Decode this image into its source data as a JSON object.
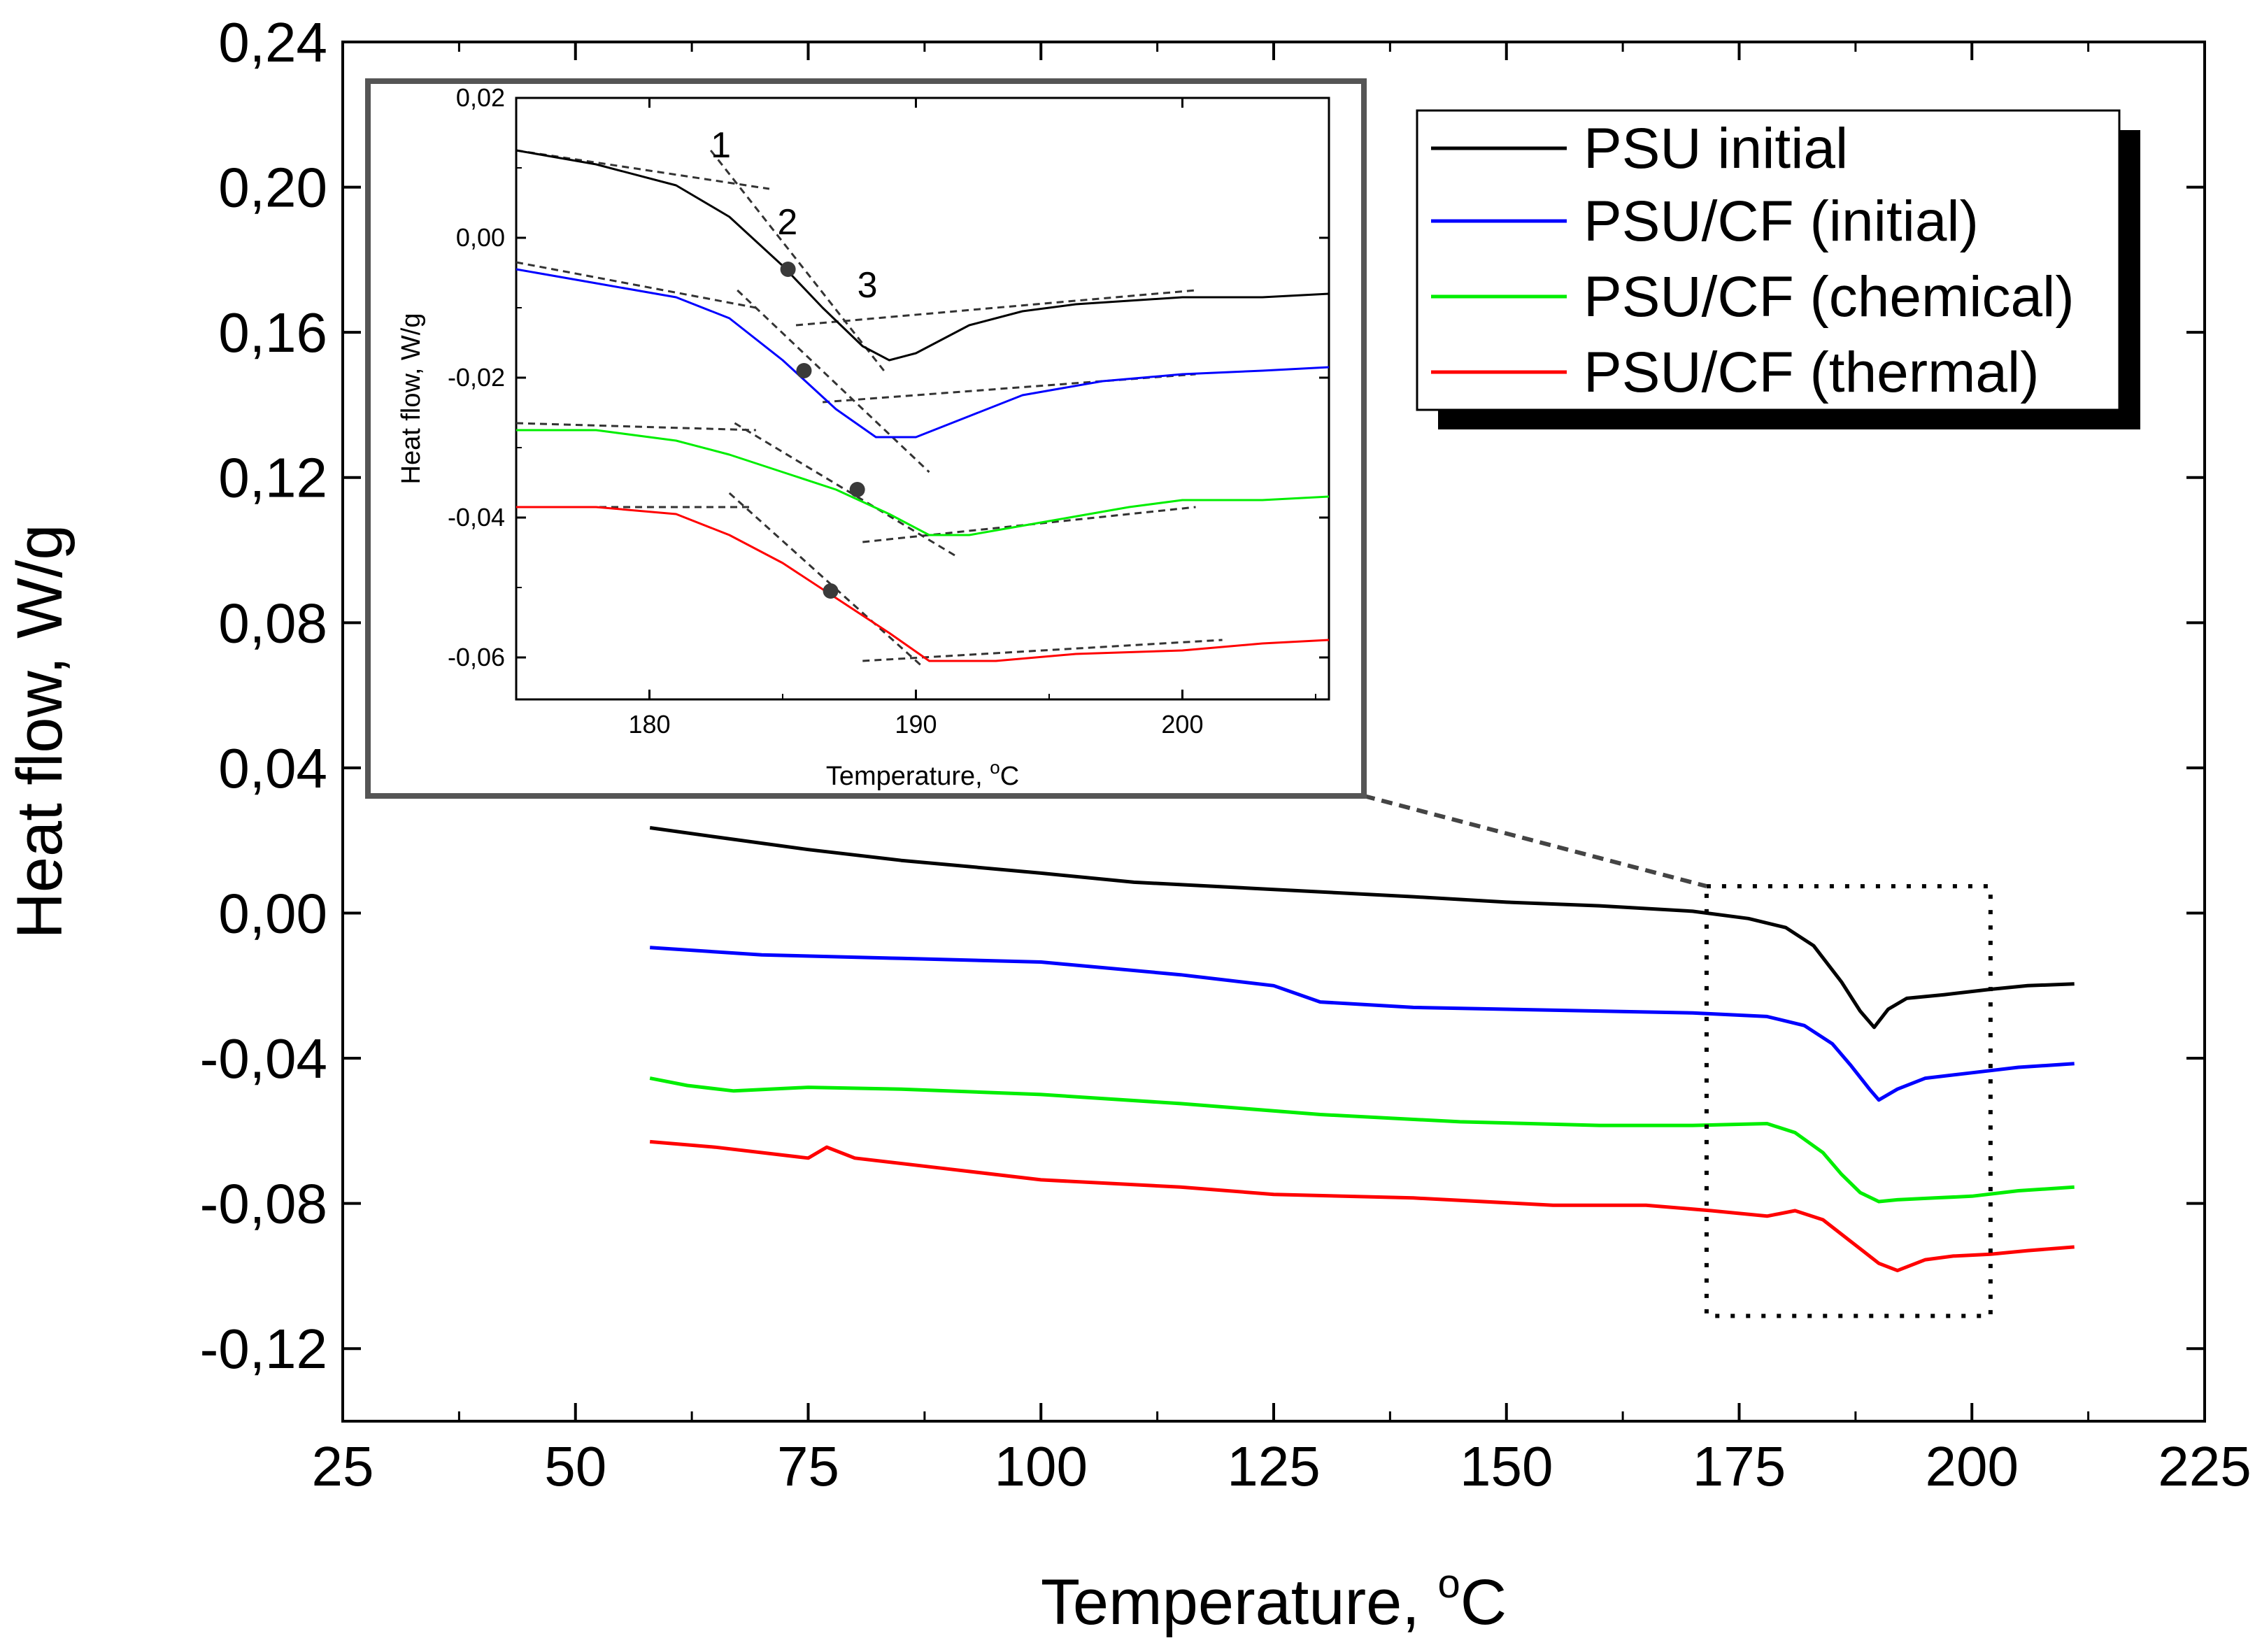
{
  "chart_data": [
    {
      "id": "main",
      "type": "line",
      "title": "",
      "xlabel": "Temperature, ",
      "xlabel_sup": "o",
      "xlabel_unit": "C",
      "ylabel": "Heat flow, W/g",
      "xlim": [
        25,
        225
      ],
      "ylim": [
        -0.14,
        0.24
      ],
      "xticks": [
        25,
        50,
        75,
        100,
        125,
        150,
        175,
        200,
        225
      ],
      "xtick_labels": [
        "25",
        "50",
        "75",
        "100",
        "125",
        "150",
        "175",
        "200",
        "225"
      ],
      "yticks": [
        -0.12,
        -0.08,
        -0.04,
        0.0,
        0.04,
        0.08,
        0.12,
        0.16,
        0.2,
        0.24
      ],
      "ytick_labels": [
        "-0,12",
        "-0,08",
        "-0,04",
        "0,00",
        "0,04",
        "0,08",
        "0,12",
        "0,16",
        "0,20",
        "0,24"
      ],
      "legend_position": "top-right",
      "zoom_box": {
        "x": [
          171.5,
          202
        ],
        "y": [
          -0.111,
          0.0074
        ]
      },
      "series": [
        {
          "name": "PSU initial",
          "color": "#000000",
          "x": [
            58,
            65,
            75,
            85,
            100,
            110,
            125,
            140,
            150,
            160,
            170,
            176,
            180,
            183,
            186,
            188,
            189.5,
            191,
            193,
            197,
            202,
            206,
            211
          ],
          "y": [
            0.0235,
            0.021,
            0.0175,
            0.0145,
            0.011,
            0.0085,
            0.0065,
            0.0045,
            0.003,
            0.002,
            0.0005,
            -0.0015,
            -0.004,
            -0.009,
            -0.019,
            -0.027,
            -0.0315,
            -0.0265,
            -0.0235,
            -0.0225,
            -0.021,
            -0.02,
            -0.0195
          ]
        },
        {
          "name": "PSU/CF (initial)",
          "color": "#0000ff",
          "x": [
            58,
            70,
            85,
            100,
            115,
            125,
            130,
            140,
            150,
            160,
            170,
            178,
            182,
            185,
            187,
            189,
            190,
            192,
            195,
            200,
            205,
            211
          ],
          "y": [
            -0.0095,
            -0.0115,
            -0.0125,
            -0.0135,
            -0.017,
            -0.02,
            -0.0245,
            -0.026,
            -0.0265,
            -0.027,
            -0.0275,
            -0.0285,
            -0.031,
            -0.036,
            -0.042,
            -0.0485,
            -0.0515,
            -0.0485,
            -0.0455,
            -0.044,
            -0.0425,
            -0.0415
          ]
        },
        {
          "name": "PSU/CF (chemical)",
          "color": "#00ee00",
          "x": [
            58,
            62,
            67,
            75,
            85,
            100,
            115,
            130,
            145,
            160,
            170,
            178,
            181,
            184,
            186,
            188,
            190,
            192,
            196,
            200,
            205,
            211
          ],
          "y": [
            -0.0455,
            -0.0475,
            -0.049,
            -0.048,
            -0.0485,
            -0.05,
            -0.0525,
            -0.0555,
            -0.0575,
            -0.0585,
            -0.0585,
            -0.058,
            -0.0605,
            -0.066,
            -0.072,
            -0.077,
            -0.0795,
            -0.079,
            -0.0785,
            -0.078,
            -0.0765,
            -0.0755
          ]
        },
        {
          "name": "PSU/CF (thermal)",
          "color": "#ff0000",
          "x": [
            58,
            65,
            75,
            77,
            80,
            90,
            100,
            115,
            125,
            140,
            155,
            165,
            172,
            178,
            181,
            184,
            187,
            190,
            192,
            195,
            198,
            202,
            206,
            211
          ],
          "y": [
            -0.063,
            -0.0645,
            -0.0675,
            -0.0645,
            -0.0675,
            -0.0705,
            -0.0735,
            -0.0755,
            -0.0775,
            -0.0785,
            -0.0805,
            -0.0805,
            -0.082,
            -0.0835,
            -0.082,
            -0.0845,
            -0.0905,
            -0.0965,
            -0.0985,
            -0.0955,
            -0.0945,
            -0.094,
            -0.093,
            -0.092
          ]
        }
      ]
    },
    {
      "id": "inset",
      "type": "line",
      "title": "",
      "xlabel": "Temperature, ",
      "xlabel_sup": "o",
      "xlabel_unit": "C",
      "ylabel": "Heat flow, W/g",
      "xlim": [
        175,
        205.5
      ],
      "ylim": [
        -0.066,
        0.02
      ],
      "xticks": [
        180,
        190,
        200
      ],
      "xtick_labels": [
        "180",
        "190",
        "200"
      ],
      "yticks": [
        -0.06,
        -0.04,
        -0.02,
        0.0,
        0.02
      ],
      "ytick_labels": [
        "-0,06",
        "-0,04",
        "-0,02",
        "0,00",
        "0,02"
      ],
      "annotations": [
        "1",
        "2",
        "3"
      ],
      "annotation_positions": [
        {
          "x": 182.3,
          "y": 0.0115
        },
        {
          "x": 184.8,
          "y": 0.0005
        },
        {
          "x": 187.8,
          "y": -0.0085
        }
      ],
      "onset_points": [
        {
          "series": "PSU initial",
          "x": 185.2,
          "y": -0.0045
        },
        {
          "series": "PSU/CF (initial)",
          "x": 185.8,
          "y": -0.019
        },
        {
          "series": "PSU/CF (chemical)",
          "x": 187.8,
          "y": -0.036
        },
        {
          "series": "PSU/CF (thermal)",
          "x": 186.8,
          "y": -0.0505
        }
      ],
      "series": [
        {
          "name": "PSU initial",
          "color": "#000000",
          "x": [
            175,
            178,
            181,
            183,
            185,
            186.5,
            188,
            189,
            190,
            192,
            194,
            196,
            200,
            203,
            205.5
          ],
          "y": [
            0.0125,
            0.0105,
            0.0075,
            0.003,
            -0.004,
            -0.01,
            -0.0155,
            -0.0175,
            -0.0165,
            -0.0125,
            -0.0105,
            -0.0095,
            -0.0085,
            -0.0085,
            -0.008
          ]
        },
        {
          "name": "PSU/CF (initial)",
          "color": "#0000ff",
          "x": [
            175,
            178,
            181,
            183,
            185,
            187,
            188.5,
            190,
            192,
            194,
            197,
            200,
            203,
            205.5
          ],
          "y": [
            -0.0045,
            -0.0065,
            -0.0085,
            -0.0115,
            -0.0175,
            -0.0245,
            -0.0285,
            -0.0285,
            -0.0255,
            -0.0225,
            -0.0205,
            -0.0195,
            -0.019,
            -0.0185
          ]
        },
        {
          "name": "PSU/CF (chemical)",
          "color": "#00ee00",
          "x": [
            175,
            178,
            181,
            183,
            185,
            187,
            189,
            190.5,
            192,
            195,
            198,
            200,
            203,
            205.5
          ],
          "y": [
            -0.0275,
            -0.0275,
            -0.029,
            -0.031,
            -0.0335,
            -0.036,
            -0.0395,
            -0.0425,
            -0.0425,
            -0.0405,
            -0.0385,
            -0.0375,
            -0.0375,
            -0.037
          ]
        },
        {
          "name": "PSU/CF (thermal)",
          "color": "#ff0000",
          "x": [
            175,
            178,
            181,
            183,
            185,
            187,
            189,
            190.5,
            193,
            196,
            200,
            203,
            205.5
          ],
          "y": [
            -0.0385,
            -0.0385,
            -0.0395,
            -0.0425,
            -0.0465,
            -0.0515,
            -0.0565,
            -0.0605,
            -0.0605,
            -0.0595,
            -0.059,
            -0.058,
            -0.0575
          ]
        }
      ]
    }
  ]
}
